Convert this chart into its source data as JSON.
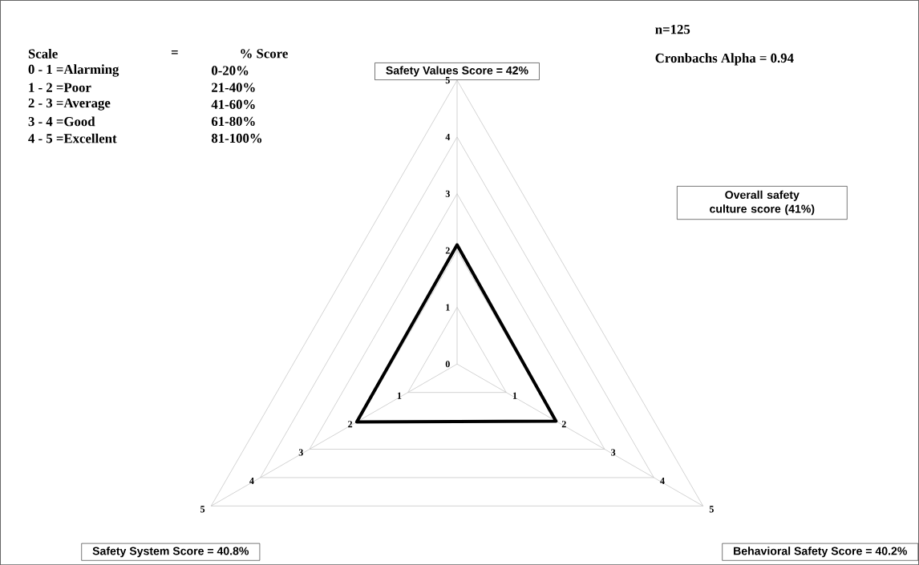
{
  "chart_data": {
    "type": "radar",
    "categories": [
      "Safety Values Score = 42%",
      "Behavioral Safety Score = 40.2%",
      "Safety System Score = 40.8%"
    ],
    "series": [
      {
        "color": "#000000",
        "values": [
          2.1,
          2.01,
          2.04
        ]
      }
    ],
    "ylim": [
      0,
      5
    ],
    "yticks": [
      0,
      1,
      2,
      3,
      4,
      5
    ],
    "grid": true,
    "annotations": [
      "Scale",
      "=",
      "% Score",
      "0 - 1 =Alarming",
      "0-20%",
      "1 - 2 =Poor",
      "21-40%",
      "2 - 3 =Average",
      "41-60%",
      "3 - 4 =Good",
      "61-80%",
      "4 - 5 =Excellent",
      "81-100%",
      "n=125",
      "Cronbachs Alpha = 0.94",
      "Overall safety culture score (41%)",
      "1",
      "2",
      "3",
      "4",
      "5",
      "1",
      "2",
      "3",
      "4",
      "5"
    ]
  }
}
